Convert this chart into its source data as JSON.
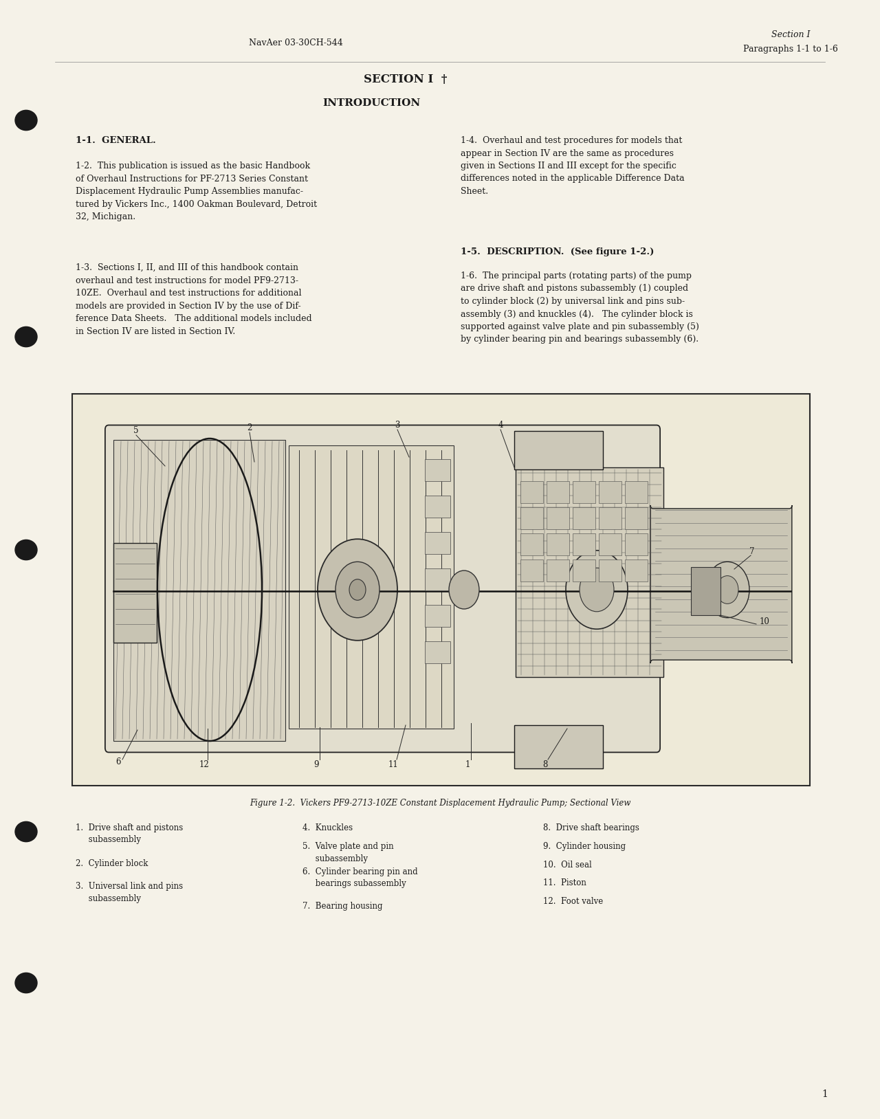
{
  "bg_color": "#f5f2e8",
  "page_width": 12.8,
  "page_height": 16.28,
  "header_left": "NavAer 03-30CH-544",
  "header_right_line1": "Section I",
  "header_right_line2": "Paragraphs 1-1 to 1-6",
  "section_title": "SECTION I",
  "section_symbol": "†",
  "intro_title": "INTRODUCTION",
  "heading_11": "1-1.  GENERAL.",
  "para_12": "1-2.  This publication is issued as the basic Handbook\nof Overhaul Instructions for PF-2713 Series Constant\nDisplacement Hydraulic Pump Assemblies manufac-\ntured by Vickers Inc., 1400 Oakman Boulevard, Detroit\n32, Michigan.",
  "para_13": "1-3.  Sections I, II, and III of this handbook contain\noverhaul and test instructions for model PF9-2713-\n10ZE.  Overhaul and test instructions for additional\nmodels are provided in Section IV by the use of Dif-\nference Data Sheets.   The additional models included\nin Section IV are listed in Section IV.",
  "para_14": "1-4.  Overhaul and test procedures for models that\nappear in Section IV are the same as procedures\ngiven in Sections II and III except for the specific\ndifferences noted in the applicable Difference Data\nSheet.",
  "heading_15": "1-5.  DESCRIPTION.  (See figure 1-2.)",
  "para_16": "1-6.  The principal parts (rotating parts) of the pump\nare drive shaft and pistons subassembly (1) coupled\nto cylinder block (2) by universal link and pins sub-\nassembly (3) and knuckles (4).   The cylinder block is\nsupported against valve plate and pin subassembly (5)\nby cylinder bearing pin and bearings subassembly (6).",
  "figure_caption": "Figure 1-2.  Vickers PF9-2713-10ZE Constant Displacement Hydraulic Pump; Sectional View",
  "legend_col1": [
    "1.  Drive shaft and pistons\n     subassembly",
    "2.  Cylinder block",
    "3.  Universal link and pins\n     subassembly"
  ],
  "legend_col2": [
    "4.  Knuckles",
    "5.  Valve plate and pin\n     subassembly",
    "6.  Cylinder bearing pin and\n     bearings subassembly",
    "7.  Bearing housing"
  ],
  "legend_col3": [
    "8.  Drive shaft bearings",
    "9.  Cylinder housing",
    "10.  Oil seal",
    "11.  Piston",
    "12.  Foot valve"
  ],
  "page_number": "1",
  "text_color": "#1a1a1a",
  "hole_color": "#1a1a1a",
  "box_color": "#2a2a2a"
}
